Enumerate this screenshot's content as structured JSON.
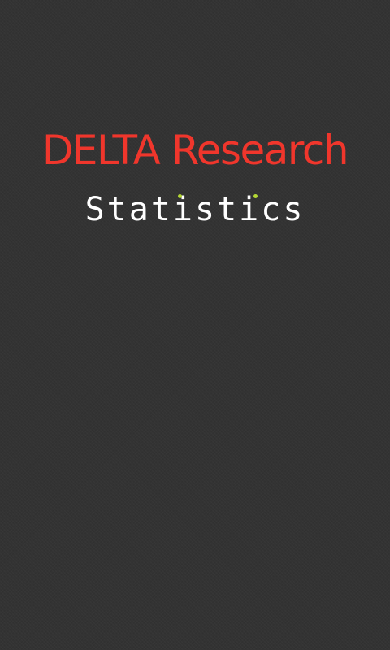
{
  "splash": {
    "title": "DELTA Research",
    "subtitle": "Statistics"
  },
  "colors": {
    "background": "#333333",
    "title": "#f0362c",
    "subtitle": "#ffffff",
    "accent_dots": "#b4d834"
  }
}
